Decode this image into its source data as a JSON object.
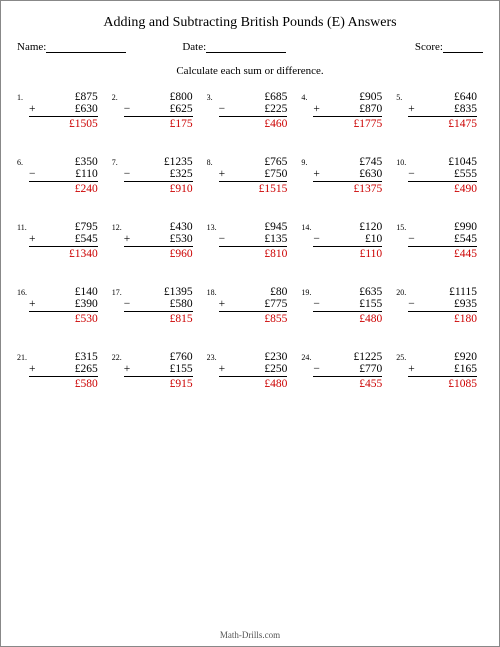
{
  "title": "Adding and Subtracting British Pounds (E) Answers",
  "header": {
    "name_label": "Name:",
    "date_label": "Date:",
    "score_label": "Score:"
  },
  "instruction": "Calculate each sum or difference.",
  "footer": "Math-Drills.com",
  "currency": "£",
  "style": {
    "answer_color": "#cc0000",
    "text_color": "#000000",
    "background": "#ffffff",
    "title_fontsize": 14,
    "body_fontsize": 11.5,
    "small_fontsize": 8,
    "columns": 5,
    "rows": 5
  },
  "problems": [
    {
      "n": "1.",
      "a": "£875",
      "op": "+",
      "b": "£630",
      "ans": "£1505"
    },
    {
      "n": "2.",
      "a": "£800",
      "op": "−",
      "b": "£625",
      "ans": "£175"
    },
    {
      "n": "3.",
      "a": "£685",
      "op": "−",
      "b": "£225",
      "ans": "£460"
    },
    {
      "n": "4.",
      "a": "£905",
      "op": "+",
      "b": "£870",
      "ans": "£1775"
    },
    {
      "n": "5.",
      "a": "£640",
      "op": "+",
      "b": "£835",
      "ans": "£1475"
    },
    {
      "n": "6.",
      "a": "£350",
      "op": "−",
      "b": "£110",
      "ans": "£240"
    },
    {
      "n": "7.",
      "a": "£1235",
      "op": "−",
      "b": "£325",
      "ans": "£910"
    },
    {
      "n": "8.",
      "a": "£765",
      "op": "+",
      "b": "£750",
      "ans": "£1515"
    },
    {
      "n": "9.",
      "a": "£745",
      "op": "+",
      "b": "£630",
      "ans": "£1375"
    },
    {
      "n": "10.",
      "a": "£1045",
      "op": "−",
      "b": "£555",
      "ans": "£490"
    },
    {
      "n": "11.",
      "a": "£795",
      "op": "+",
      "b": "£545",
      "ans": "£1340"
    },
    {
      "n": "12.",
      "a": "£430",
      "op": "+",
      "b": "£530",
      "ans": "£960"
    },
    {
      "n": "13.",
      "a": "£945",
      "op": "−",
      "b": "£135",
      "ans": "£810"
    },
    {
      "n": "14.",
      "a": "£120",
      "op": "−",
      "b": "£10",
      "ans": "£110"
    },
    {
      "n": "15.",
      "a": "£990",
      "op": "−",
      "b": "£545",
      "ans": "£445"
    },
    {
      "n": "16.",
      "a": "£140",
      "op": "+",
      "b": "£390",
      "ans": "£530"
    },
    {
      "n": "17.",
      "a": "£1395",
      "op": "−",
      "b": "£580",
      "ans": "£815"
    },
    {
      "n": "18.",
      "a": "£80",
      "op": "+",
      "b": "£775",
      "ans": "£855"
    },
    {
      "n": "19.",
      "a": "£635",
      "op": "−",
      "b": "£155",
      "ans": "£480"
    },
    {
      "n": "20.",
      "a": "£1115",
      "op": "−",
      "b": "£935",
      "ans": "£180"
    },
    {
      "n": "21.",
      "a": "£315",
      "op": "+",
      "b": "£265",
      "ans": "£580"
    },
    {
      "n": "22.",
      "a": "£760",
      "op": "+",
      "b": "£155",
      "ans": "£915"
    },
    {
      "n": "23.",
      "a": "£230",
      "op": "+",
      "b": "£250",
      "ans": "£480"
    },
    {
      "n": "24.",
      "a": "£1225",
      "op": "−",
      "b": "£770",
      "ans": "£455"
    },
    {
      "n": "25.",
      "a": "£920",
      "op": "+",
      "b": "£165",
      "ans": "£1085"
    }
  ]
}
